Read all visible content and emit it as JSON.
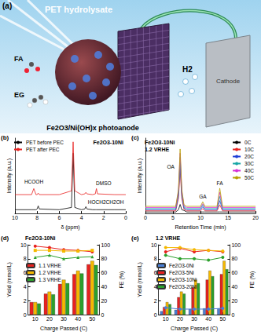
{
  "diagram": {
    "panel": "(a)",
    "source": "PET hydrolysate",
    "product_1": "FA",
    "product_2": "EG",
    "gas": "H2",
    "photoanode": "Fe2O3/Ni(OH)x photoanode",
    "cathode": "Cathode"
  },
  "chart_data": [
    {
      "panel": "(b)",
      "type": "line",
      "title": "Fe2O3-10Ni",
      "xlabel": "δ (ppm)",
      "ylabel": "Intensity (a.u.)",
      "x": [
        10,
        8.5,
        8.3,
        8.1,
        8.0,
        7.9,
        7.8,
        6,
        4.9,
        4.75,
        4.6,
        4,
        3.7,
        3.6,
        3.5,
        3,
        2.75,
        2.65,
        2.55,
        1,
        0
      ],
      "xlim": [
        10,
        0
      ],
      "xticks": [
        10,
        8,
        6,
        4,
        2,
        0
      ],
      "ylim": [
        0,
        100
      ],
      "yticks": [],
      "tick_labels": "x",
      "grid": false,
      "legend": "upper left",
      "series": [
        {
          "name": "PET before PEC",
          "color": "#000000",
          "values": [
            5,
            5,
            5,
            5,
            6,
            10,
            6,
            5,
            8,
            80,
            8,
            5,
            6,
            9,
            6,
            5,
            5,
            5,
            5,
            5,
            5
          ]
        },
        {
          "name": "PET after PEC",
          "color": "#e8211f",
          "values": [
            25,
            25,
            33,
            25,
            25,
            27,
            25,
            25,
            30,
            95,
            30,
            25,
            26,
            28,
            26,
            25,
            26,
            33,
            26,
            25,
            25
          ]
        }
      ],
      "annotations": [
        {
          "text": "HCOOH",
          "x": 8.3,
          "y": 42
        },
        {
          "text": "DMSO",
          "x": 2.0,
          "y": 40
        },
        {
          "text": "HOCH2CH2OH",
          "x": 1.8,
          "y": 15
        }
      ]
    },
    {
      "panel": "(c)",
      "type": "line",
      "title": "Fe2O3-10Ni",
      "subtitle": "1.2 VRHE",
      "xlabel": "Retention Time (min)",
      "ylabel": "Intensity (a.u.)",
      "x": [
        0,
        5.5,
        6.0,
        6.3,
        6.6,
        7.0,
        7.5,
        10.0,
        10.4,
        10.8,
        13.0,
        13.5,
        14.0,
        20
      ],
      "xlim": [
        0,
        20
      ],
      "xticks": [
        0,
        5,
        10,
        15,
        20
      ],
      "ylim": [
        0,
        100
      ],
      "yticks": [],
      "tick_labels": "x",
      "grid": false,
      "legend": "upper right",
      "series": [
        {
          "name": "0C",
          "color": "#000000",
          "values": [
            2,
            2,
            5,
            12,
            5,
            4,
            2,
            2,
            2,
            2,
            2,
            2,
            2,
            2
          ]
        },
        {
          "name": "10C",
          "color": "#e8211f",
          "values": [
            3.5,
            3.5,
            20,
            58.5,
            20,
            5.5,
            3.5,
            3.5,
            6.5,
            3.5,
            3.5,
            11.5,
            3.5,
            3.5
          ]
        },
        {
          "name": "20C",
          "color": "#1f3fd6",
          "values": [
            5,
            5,
            24,
            67,
            24,
            7,
            5,
            5,
            9,
            5,
            5,
            17,
            5,
            5
          ]
        },
        {
          "name": "30C",
          "color": "#17a6a6",
          "values": [
            6.5,
            6.5,
            27,
            74.5,
            27,
            8.5,
            6.5,
            6.5,
            11.5,
            6.5,
            6.5,
            22.5,
            6.5,
            6.5
          ]
        },
        {
          "name": "40C",
          "color": "#d62fd6",
          "values": [
            8,
            8,
            30,
            80,
            30,
            10,
            8,
            8,
            13,
            8,
            8,
            28,
            8,
            8
          ]
        },
        {
          "name": "50C",
          "color": "#b8a000",
          "values": [
            9.5,
            9.5,
            32,
            85.5,
            32,
            11.5,
            9.5,
            9.5,
            15.5,
            9.5,
            9.5,
            33.5,
            9.5,
            9.5
          ]
        }
      ],
      "annotations": [
        {
          "text": "OA",
          "x": 4.6,
          "y": 62
        },
        {
          "text": "GA",
          "x": 10.4,
          "y": 22
        },
        {
          "text": "FA",
          "x": 13.5,
          "y": 40
        }
      ]
    },
    {
      "panel": "(d)",
      "type": "bar",
      "title": "Fe2O3-10Ni",
      "xlabel": "Charge Passed (C)",
      "ylabel": "Yield (mmol/L)",
      "y2label": "FE (%)",
      "categories": [
        10,
        20,
        30,
        40,
        50
      ],
      "ylim": [
        0,
        10
      ],
      "yticks": [
        0,
        2,
        4,
        6,
        8,
        10
      ],
      "y2lim": [
        0,
        100
      ],
      "y2ticks": [
        0,
        20,
        40,
        60,
        80,
        100
      ],
      "grid": false,
      "legend": "upper left",
      "series": [
        {
          "name": "1.1 VRHE",
          "type": "bar",
          "color": "#e8211f",
          "values": [
            1.8,
            3.0,
            4.4,
            5.8,
            7.2
          ]
        },
        {
          "name": "1.2 VRHE",
          "type": "bar",
          "color": "#f5b800",
          "values": [
            1.8,
            3.3,
            5.0,
            6.3,
            7.7
          ]
        },
        {
          "name": "1.3 VRHE",
          "type": "bar",
          "color": "#2ca02c",
          "values": [
            1.6,
            2.9,
            4.5,
            5.9,
            7.1
          ]
        },
        {
          "type": "line",
          "axis": "y2",
          "color": "#e8211f",
          "marker": "circle",
          "values": [
            98,
            96,
            93,
            92,
            90
          ]
        },
        {
          "type": "line",
          "axis": "y2",
          "color": "#f5b800",
          "marker": "square",
          "values": [
            92,
            92,
            91,
            91,
            92
          ]
        },
        {
          "type": "line",
          "axis": "y2",
          "color": "#2ca02c",
          "marker": "triangle",
          "values": [
            82,
            85,
            80,
            82,
            83
          ]
        }
      ]
    },
    {
      "panel": "(e)",
      "type": "bar",
      "title": "1.2 VRHE",
      "xlabel": "Charge Passed (C)",
      "ylabel": "Yield (mmol/L)",
      "y2label": "FE (%)",
      "categories": [
        10,
        20,
        30,
        40,
        50
      ],
      "ylim": [
        0,
        10
      ],
      "yticks": [
        0,
        2,
        4,
        6,
        8,
        10
      ],
      "y2lim": [
        0,
        100
      ],
      "y2ticks": [
        0,
        20,
        40,
        60,
        80,
        100
      ],
      "grid": false,
      "legend": "upper left",
      "series": [
        {
          "name": "Fe2O3-0Ni",
          "type": "bar",
          "color": "#4a7fd6",
          "values": [
            0.5,
            0.7,
            0.8,
            0.9,
            0.9
          ]
        },
        {
          "name": "Fe2O3-5Ni",
          "type": "bar",
          "color": "#e8211f",
          "values": [
            1.1,
            2.5,
            3.9,
            5.0,
            5.8
          ]
        },
        {
          "name": "Fe2O3-10Ni",
          "type": "bar",
          "color": "#f5b800",
          "values": [
            1.8,
            3.3,
            5.0,
            6.3,
            7.7
          ]
        },
        {
          "name": "Fe2O3-20Ni",
          "type": "bar",
          "color": "#2ca02c",
          "values": [
            1.5,
            3.0,
            4.5,
            5.5,
            6.5
          ]
        },
        {
          "type": "line",
          "axis": "y2",
          "color": "#4a7fd6",
          "marker": "circle",
          "values": [
            10,
            8,
            8,
            8,
            9
          ]
        },
        {
          "type": "line",
          "axis": "y2",
          "color": "#e8211f",
          "marker": "circle",
          "values": [
            90,
            95,
            90,
            92,
            90
          ]
        },
        {
          "type": "line",
          "axis": "y2",
          "color": "#f5b800",
          "marker": "circle",
          "values": [
            96,
            96,
            93,
            92,
            91
          ]
        },
        {
          "type": "line",
          "axis": "y2",
          "color": "#2ca02c",
          "marker": "circle",
          "values": [
            85,
            80,
            80,
            78,
            82
          ]
        }
      ]
    }
  ]
}
